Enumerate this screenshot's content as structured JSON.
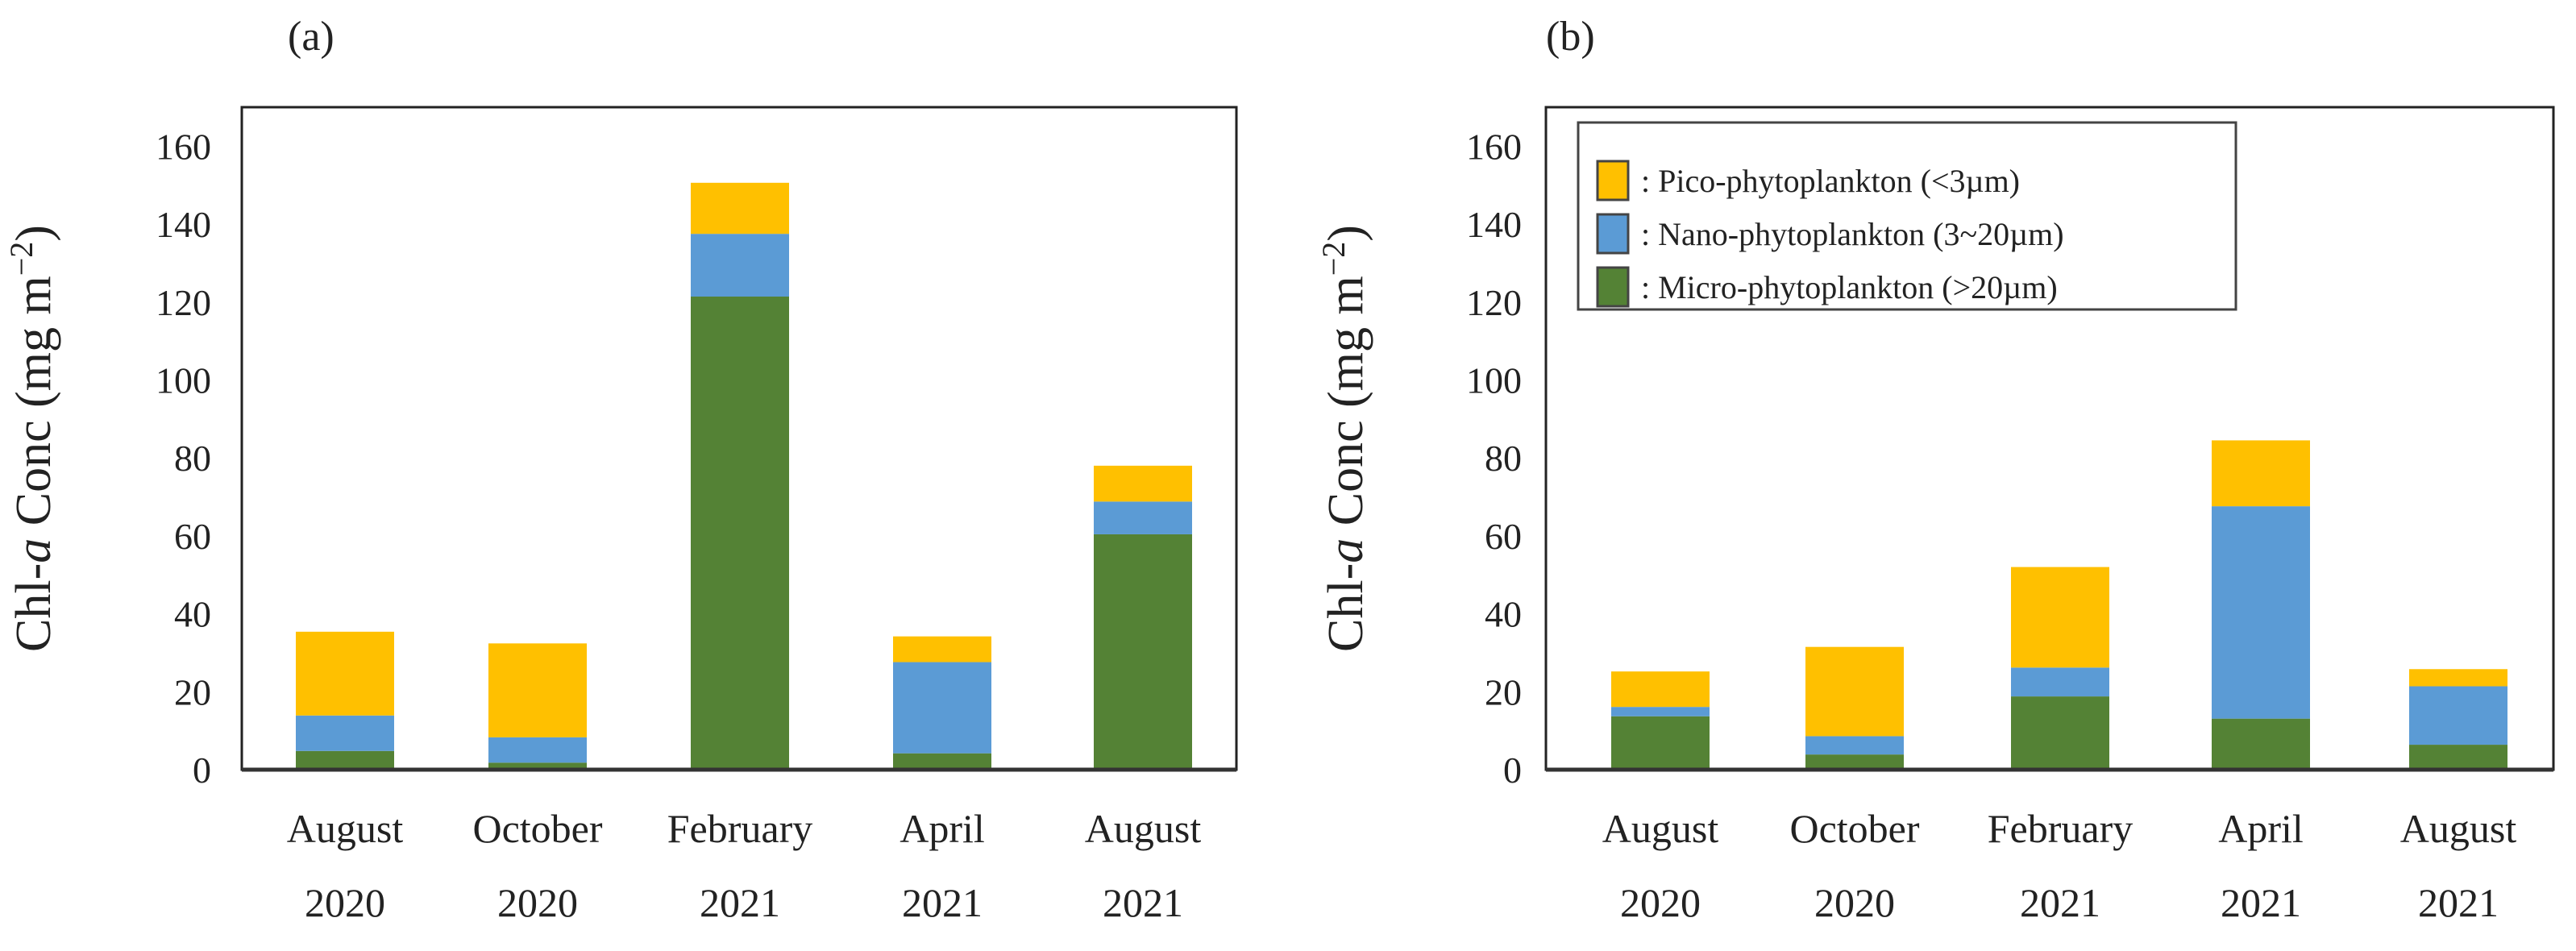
{
  "chart_data": [
    {
      "type": "bar",
      "stacked": true,
      "panel_label": "(a)",
      "ylabel": {
        "prefix": "Chl-",
        "italic": "a",
        "mid": " Conc (mg m",
        "sup": "−2",
        "suffix": ")"
      },
      "ylim": [
        0,
        170
      ],
      "yticks": [
        "0",
        "20",
        "40",
        "60",
        "80",
        "100",
        "120",
        "140",
        "160"
      ],
      "categories": [
        [
          "August",
          "2020"
        ],
        [
          "October",
          "2020"
        ],
        [
          "February",
          "2021"
        ],
        [
          "April",
          "2021"
        ],
        [
          "August",
          "2021"
        ]
      ],
      "series": [
        {
          "name": ": Micro-phytoplankton (>20µm)",
          "color": "#548235",
          "values": [
            4.8,
            1.8,
            121.4,
            4.2,
            60.4
          ]
        },
        {
          "name": ": Nano-phytoplankton (3~20µm)",
          "color": "#5b9bd5",
          "values": [
            9.1,
            6.5,
            16.1,
            23.4,
            8.4
          ]
        },
        {
          "name": ": Pico-phytoplankton (<3µm)",
          "color": "#ffc000",
          "values": [
            21.5,
            24.1,
            13.1,
            6.6,
            9.2
          ]
        }
      ],
      "legend": "none",
      "grid": false
    },
    {
      "type": "bar",
      "stacked": true,
      "panel_label": "(b)",
      "ylabel": {
        "prefix": "Chl-",
        "italic": "a",
        "mid": " Conc (mg m",
        "sup": "−2",
        "suffix": ")"
      },
      "ylim": [
        0,
        170
      ],
      "yticks": [
        "0",
        "20",
        "40",
        "60",
        "80",
        "100",
        "120",
        "140",
        "160"
      ],
      "categories": [
        [
          "August",
          "2020"
        ],
        [
          "October",
          "2020"
        ],
        [
          "February",
          "2021"
        ],
        [
          "April",
          "2021"
        ],
        [
          "August",
          "2021"
        ]
      ],
      "series": [
        {
          "name": ": Micro-phytoplankton (>20µm)",
          "color": "#548235",
          "values": [
            13.7,
            3.9,
            18.8,
            13.1,
            6.4
          ]
        },
        {
          "name": ": Nano-phytoplankton (3~20µm)",
          "color": "#5b9bd5",
          "values": [
            2.4,
            4.7,
            7.4,
            54.5,
            15.0
          ]
        },
        {
          "name": ": Pico-phytoplankton (<3µm)",
          "color": "#ffc000",
          "values": [
            9.1,
            22.9,
            25.8,
            16.9,
            4.4
          ]
        }
      ],
      "legend": "top-left",
      "legend_order": [
        2,
        1,
        0
      ],
      "grid": false
    }
  ]
}
